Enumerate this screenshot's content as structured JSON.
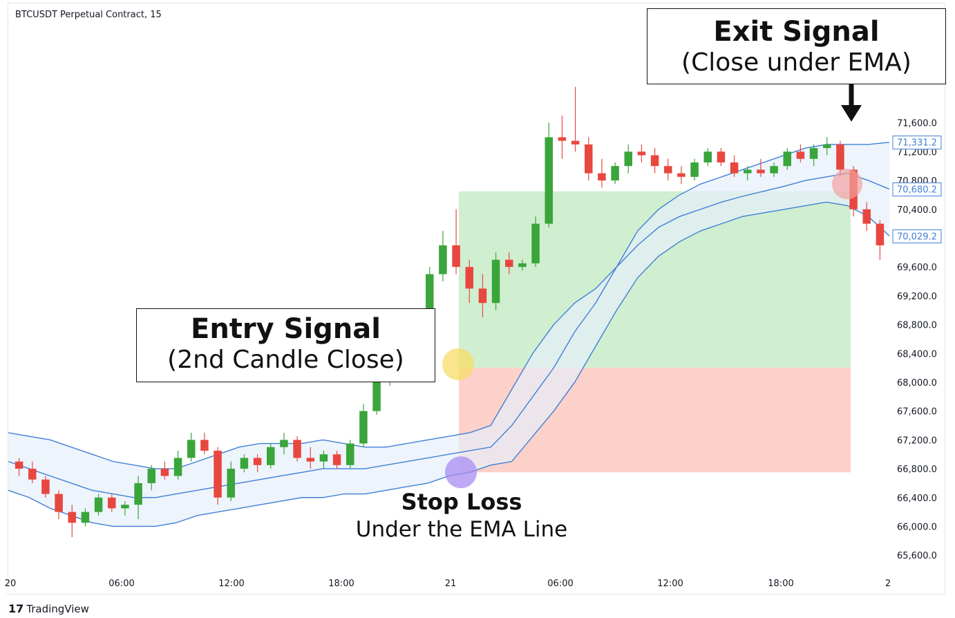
{
  "symbol_label": "BTCUSDT Perpetual Contract, 15",
  "branding": {
    "logo_text": "TradingView",
    "logo_mark": "17"
  },
  "annotations": {
    "entry": {
      "title": "Entry Signal",
      "subtitle": "(2nd Candle Close)"
    },
    "exit": {
      "title": "Exit Signal",
      "subtitle": "(Close under EMA)"
    },
    "stop": {
      "title": "Stop Loss",
      "subtitle": "Under the EMA Line"
    }
  },
  "colors": {
    "up": "#26a69a",
    "up_candle": "#3aa53a",
    "down_candle": "#e8473f",
    "band_line": "#3f7fd6",
    "band_fill": "#e6f0fb",
    "profit_zone": "#c8ebc8",
    "loss_zone": "#fcc9c0",
    "entry_marker": "#f7dc66",
    "stop_marker": "#a98cf2",
    "exit_marker": "#f2a3a0"
  },
  "chart_data": {
    "type": "candlestick",
    "x_ticks": [
      "20",
      "06:00",
      "12:00",
      "18:00",
      "21",
      "06:00",
      "12:00",
      "18:00",
      "2"
    ],
    "y_ticks": [
      "71,600.0",
      "71,200.0",
      "70,800.0",
      "70,400.0",
      "69,600.0",
      "69,200.0",
      "68,800.0",
      "68,400.0",
      "68,000.0",
      "67,600.0",
      "67,200.0",
      "66,800.0",
      "66,400.0",
      "66,000.0",
      "65,600.0"
    ],
    "ylim": [
      65400,
      72700
    ],
    "price_badges": [
      "71,331.2",
      "70,680.2",
      "70,029.2"
    ],
    "zones": {
      "profit": {
        "from": 68200,
        "to": 70650,
        "start": "21",
        "end": "2"
      },
      "loss": {
        "from": 66750,
        "to": 68200,
        "start": "21",
        "end": "2"
      }
    },
    "markers": {
      "entry": 68250,
      "stop": 66750,
      "exit": 70750
    },
    "channel": {
      "upper": [
        67300,
        67250,
        67200,
        67100,
        67000,
        66900,
        66850,
        66800,
        66800,
        66900,
        67000,
        67100,
        67150,
        67150,
        67150,
        67200,
        67150,
        67100,
        67100,
        67150,
        67200,
        67250,
        67300,
        67400,
        67900,
        68400,
        68800,
        69100,
        69300,
        69600,
        70100,
        70400,
        70600,
        70750,
        70850,
        70950,
        71050,
        71150,
        71250,
        71300,
        71300,
        71300,
        71330
      ],
      "middle": [
        66900,
        66800,
        66700,
        66600,
        66500,
        66450,
        66400,
        66400,
        66450,
        66500,
        66550,
        66600,
        66650,
        66700,
        66750,
        66800,
        66800,
        66800,
        66850,
        66900,
        66950,
        67000,
        67050,
        67100,
        67400,
        67800,
        68200,
        68700,
        69100,
        69600,
        69900,
        70150,
        70300,
        70400,
        70500,
        70580,
        70650,
        70720,
        70800,
        70850,
        70900,
        70800,
        70680
      ],
      "lower": [
        66500,
        66400,
        66250,
        66150,
        66050,
        66000,
        66000,
        66000,
        66050,
        66150,
        66200,
        66250,
        66300,
        66350,
        66400,
        66400,
        66450,
        66450,
        66500,
        66550,
        66600,
        66700,
        66750,
        66850,
        66900,
        67250,
        67600,
        68000,
        68500,
        69000,
        69450,
        69750,
        69950,
        70100,
        70200,
        70300,
        70350,
        70400,
        70450,
        70500,
        70450,
        70300,
        70030
      ]
    },
    "candles": [
      {
        "o": 66900,
        "h": 66950,
        "l": 66700,
        "c": 66800
      },
      {
        "o": 66800,
        "h": 66900,
        "l": 66600,
        "c": 66650
      },
      {
        "o": 66650,
        "h": 66700,
        "l": 66400,
        "c": 66450
      },
      {
        "o": 66450,
        "h": 66500,
        "l": 66100,
        "c": 66200
      },
      {
        "o": 66200,
        "h": 66300,
        "l": 65850,
        "c": 66050
      },
      {
        "o": 66050,
        "h": 66250,
        "l": 66000,
        "c": 66200
      },
      {
        "o": 66200,
        "h": 66450,
        "l": 66150,
        "c": 66400
      },
      {
        "o": 66400,
        "h": 66450,
        "l": 66200,
        "c": 66250
      },
      {
        "o": 66250,
        "h": 66350,
        "l": 66150,
        "c": 66300
      },
      {
        "o": 66300,
        "h": 66700,
        "l": 66100,
        "c": 66600
      },
      {
        "o": 66600,
        "h": 66850,
        "l": 66500,
        "c": 66800
      },
      {
        "o": 66800,
        "h": 66900,
        "l": 66650,
        "c": 66700
      },
      {
        "o": 66700,
        "h": 67050,
        "l": 66650,
        "c": 66950
      },
      {
        "o": 66950,
        "h": 67300,
        "l": 66900,
        "c": 67200
      },
      {
        "o": 67200,
        "h": 67300,
        "l": 67000,
        "c": 67050
      },
      {
        "o": 67050,
        "h": 67100,
        "l": 66300,
        "c": 66400
      },
      {
        "o": 66400,
        "h": 66900,
        "l": 66350,
        "c": 66800
      },
      {
        "o": 66800,
        "h": 67000,
        "l": 66750,
        "c": 66950
      },
      {
        "o": 66950,
        "h": 67000,
        "l": 66750,
        "c": 66850
      },
      {
        "o": 66850,
        "h": 67150,
        "l": 66800,
        "c": 67100
      },
      {
        "o": 67100,
        "h": 67300,
        "l": 67000,
        "c": 67200
      },
      {
        "o": 67200,
        "h": 67250,
        "l": 66900,
        "c": 66950
      },
      {
        "o": 66950,
        "h": 67100,
        "l": 66800,
        "c": 66900
      },
      {
        "o": 66900,
        "h": 67050,
        "l": 66800,
        "c": 67000
      },
      {
        "o": 67000,
        "h": 67050,
        "l": 66800,
        "c": 66850
      },
      {
        "o": 66850,
        "h": 67200,
        "l": 66800,
        "c": 67150
      },
      {
        "o": 67150,
        "h": 67700,
        "l": 67100,
        "c": 67600
      },
      {
        "o": 67600,
        "h": 68200,
        "l": 67550,
        "c": 68000
      },
      {
        "o": 68000,
        "h": 68450,
        "l": 67950,
        "c": 68350
      },
      {
        "o": 68350,
        "h": 68500,
        "l": 68100,
        "c": 68250
      },
      {
        "o": 68250,
        "h": 68750,
        "l": 68200,
        "c": 68650
      },
      {
        "o": 68650,
        "h": 69600,
        "l": 68600,
        "c": 69500
      },
      {
        "o": 69500,
        "h": 70100,
        "l": 69400,
        "c": 69900
      },
      {
        "o": 69900,
        "h": 70400,
        "l": 69500,
        "c": 69600
      },
      {
        "o": 69600,
        "h": 69700,
        "l": 69100,
        "c": 69300
      },
      {
        "o": 69300,
        "h": 69500,
        "l": 68900,
        "c": 69100
      },
      {
        "o": 69100,
        "h": 69800,
        "l": 69000,
        "c": 69700
      },
      {
        "o": 69700,
        "h": 69800,
        "l": 69500,
        "c": 69600
      },
      {
        "o": 69600,
        "h": 69700,
        "l": 69550,
        "c": 69650
      },
      {
        "o": 69650,
        "h": 70300,
        "l": 69600,
        "c": 70200
      },
      {
        "o": 70200,
        "h": 71600,
        "l": 70150,
        "c": 71400
      },
      {
        "o": 71400,
        "h": 71700,
        "l": 71100,
        "c": 71350
      },
      {
        "o": 71350,
        "h": 72100,
        "l": 71200,
        "c": 71300
      },
      {
        "o": 71300,
        "h": 71400,
        "l": 70800,
        "c": 70900
      },
      {
        "o": 70900,
        "h": 71100,
        "l": 70700,
        "c": 70800
      },
      {
        "o": 70800,
        "h": 71050,
        "l": 70750,
        "c": 71000
      },
      {
        "o": 71000,
        "h": 71300,
        "l": 70900,
        "c": 71200
      },
      {
        "o": 71200,
        "h": 71300,
        "l": 71050,
        "c": 71150
      },
      {
        "o": 71150,
        "h": 71250,
        "l": 70900,
        "c": 71000
      },
      {
        "o": 71000,
        "h": 71100,
        "l": 70800,
        "c": 70900
      },
      {
        "o": 70900,
        "h": 71000,
        "l": 70750,
        "c": 70850
      },
      {
        "o": 70850,
        "h": 71100,
        "l": 70800,
        "c": 71050
      },
      {
        "o": 71050,
        "h": 71250,
        "l": 71000,
        "c": 71200
      },
      {
        "o": 71200,
        "h": 71250,
        "l": 71000,
        "c": 71050
      },
      {
        "o": 71050,
        "h": 71150,
        "l": 70850,
        "c": 70900
      },
      {
        "o": 70900,
        "h": 71000,
        "l": 70800,
        "c": 70950
      },
      {
        "o": 70950,
        "h": 71100,
        "l": 70850,
        "c": 70900
      },
      {
        "o": 70900,
        "h": 71050,
        "l": 70850,
        "c": 71000
      },
      {
        "o": 71000,
        "h": 71250,
        "l": 70950,
        "c": 71200
      },
      {
        "o": 71200,
        "h": 71300,
        "l": 71050,
        "c": 71100
      },
      {
        "o": 71100,
        "h": 71300,
        "l": 71000,
        "c": 71250
      },
      {
        "o": 71250,
        "h": 71400,
        "l": 71150,
        "c": 71300
      },
      {
        "o": 71300,
        "h": 71350,
        "l": 70850,
        "c": 70950
      },
      {
        "o": 70950,
        "h": 71000,
        "l": 70300,
        "c": 70400
      },
      {
        "o": 70400,
        "h": 70500,
        "l": 70100,
        "c": 70200
      },
      {
        "o": 70200,
        "h": 70250,
        "l": 69700,
        "c": 69900
      }
    ]
  }
}
